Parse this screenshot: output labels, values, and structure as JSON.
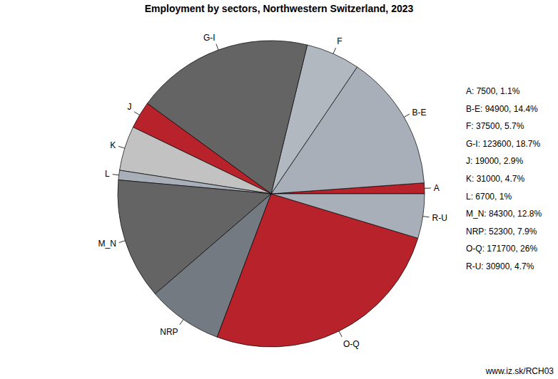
{
  "chart_data": {
    "type": "pie",
    "title": "Employment by sectors, Northwestern Switzerland, 2023",
    "categories": [
      "A",
      "B-E",
      "F",
      "G-I",
      "J",
      "K",
      "L",
      "M_N",
      "NRP",
      "O-Q",
      "R-U"
    ],
    "values": [
      7500,
      94900,
      37500,
      123600,
      19000,
      31000,
      6700,
      84300,
      52300,
      171700,
      30900
    ],
    "value_labels": [
      "A: 7500, 1.1%",
      "B-E: 94900, 14.4%",
      "F: 37500, 5.7%",
      "G-I: 123600, 18.7%",
      "J: 19000, 2.9%",
      "K: 31000, 4.7%",
      "L: 6700, 1%",
      "M_N: 84300, 12.8%",
      "NRP: 52300, 7.9%",
      "O-Q: 171700, 26%",
      "R-U: 30900, 4.7%"
    ],
    "colors": [
      "#b8232b",
      "#a9afb8",
      "#b2b8c0",
      "#646464",
      "#b8232b",
      "#c2c2c2",
      "#a9afb8",
      "#646464",
      "#737a82",
      "#b8232b",
      "#a9afb8"
    ],
    "source": "www.iz.sk/RCH03"
  }
}
